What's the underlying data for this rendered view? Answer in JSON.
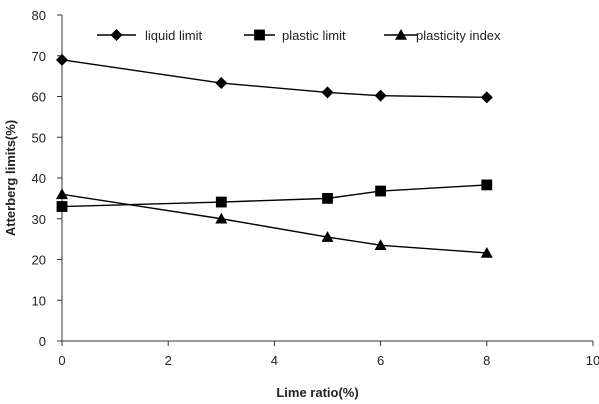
{
  "chart_data": {
    "type": "line",
    "xlabel": "Lime ratio(%)",
    "ylabel": "Atterberg limits(%)",
    "xlim": [
      0,
      10
    ],
    "ylim": [
      0,
      80
    ],
    "x_ticks": [
      "0",
      "2",
      "4",
      "6",
      "8",
      "10"
    ],
    "y_ticks": [
      "0",
      "10",
      "20",
      "30",
      "40",
      "50",
      "60",
      "70",
      "80"
    ],
    "grid": false,
    "legend_position": "top",
    "x": [
      0,
      3,
      5,
      6,
      8
    ],
    "series": [
      {
        "name": "liquid limit",
        "marker": "diamond",
        "values": [
          69.0,
          63.3,
          61.0,
          60.2,
          59.8
        ]
      },
      {
        "name": "plastic limit",
        "marker": "square",
        "values": [
          33.0,
          34.1,
          35.0,
          36.8,
          38.3
        ]
      },
      {
        "name": "plasticity index",
        "marker": "triangle",
        "values": [
          36.0,
          30.0,
          25.5,
          23.5,
          21.6
        ]
      }
    ]
  }
}
